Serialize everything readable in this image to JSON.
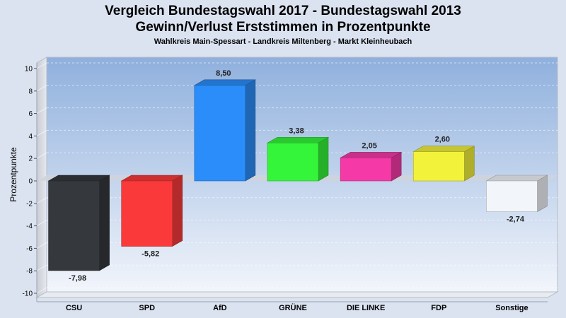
{
  "chart_data": {
    "type": "bar",
    "title": "Vergleich Bundestagswahl 2017 - Bundestagswahl 2013",
    "subtitle": "Gewinn/Verlust Erststimmen in Prozentpunkte",
    "caption": "Wahlkreis Main-Spessart - Landkreis Miltenberg - Markt Kleinheubach",
    "ylabel": "Prozentpunkte",
    "xlabel": "",
    "ylim": [
      -10,
      10
    ],
    "yticks": [
      -10,
      -8,
      -6,
      -4,
      -2,
      0,
      2,
      4,
      6,
      8,
      10
    ],
    "grid": true,
    "categories": [
      "CSU",
      "SPD",
      "AfD",
      "GRÜNE",
      "DIE LINKE",
      "FDP",
      "Sonstige"
    ],
    "values": [
      -7.98,
      -5.82,
      8.5,
      3.38,
      2.05,
      2.6,
      -2.74
    ],
    "value_labels": [
      "-7,98",
      "-5,82",
      "8,50",
      "3,38",
      "2,05",
      "2,60",
      "-2,74"
    ],
    "colors": [
      "#35383d",
      "#fa3a3a",
      "#2b8dfa",
      "#35f53a",
      "#f53aa8",
      "#f2f23a",
      "#f2f5fa"
    ]
  }
}
